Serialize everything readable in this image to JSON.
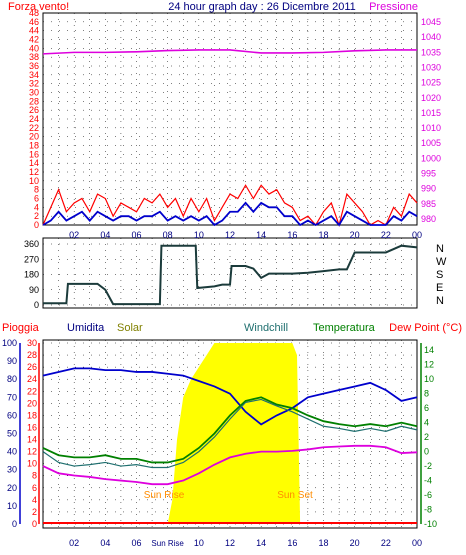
{
  "header": {
    "wind_label": "Forza vento!",
    "title": "24 hour graph day : 26 Dicembre 2011",
    "pressure_label": "Pressione"
  },
  "colors": {
    "red": "#ff0000",
    "blue": "#0000cc",
    "magenta": "#dd00dd",
    "navy": "#000080",
    "green": "#008000",
    "teal": "#1f6f6f",
    "dark": "#1b3b3b",
    "yellow": "#ffff00",
    "olive": "#808000",
    "orange": "#ff8c00"
  },
  "legend": {
    "rain": "Pioggia",
    "humidity": "Umidita",
    "solar": "Solar",
    "windchill": "Windchill",
    "temperature": "Temperatura",
    "dewpoint": "Dew Point (°C)"
  },
  "annotations": {
    "sunrise": "Sun Rise",
    "sunset": "Sun Set"
  },
  "compass": [
    "N",
    "W",
    "S",
    "E",
    "N"
  ],
  "chart_data": [
    {
      "type": "line",
      "panel": "wind-and-pressure",
      "x_ticks": [
        "02",
        "04",
        "06",
        "08",
        "10",
        "12",
        "14",
        "16",
        "18",
        "20",
        "22",
        "00"
      ],
      "y_left_ticks": [
        "0",
        "2",
        "4",
        "6",
        "8",
        "10",
        "12",
        "14",
        "16",
        "18",
        "20",
        "22",
        "24",
        "26",
        "28",
        "30",
        "32",
        "34",
        "36",
        "38",
        "40",
        "42",
        "44",
        "46",
        "48"
      ],
      "y_left_range": [
        0,
        48
      ],
      "y_right_ticks": [
        "980",
        "985",
        "990",
        "995",
        "1000",
        "1005",
        "1010",
        "1015",
        "1020",
        "1025",
        "1030",
        "1035",
        "1040",
        "1045"
      ],
      "y_right_range": [
        978,
        1048
      ],
      "series": [
        {
          "key": "gust",
          "x": [
            0.0,
            0.5,
            1.0,
            1.5,
            2.0,
            2.5,
            3.0,
            3.5,
            4.0,
            4.5,
            5.0,
            5.5,
            6.0,
            6.5,
            7.0,
            7.5,
            8.0,
            8.5,
            9.0,
            9.5,
            10.0,
            10.5,
            11.0,
            11.5,
            12.0,
            12.5,
            13.0,
            13.5,
            14.0,
            14.5,
            15.0,
            15.5,
            16.0,
            16.5,
            17.0,
            17.5,
            18.0,
            18.5,
            19.0,
            19.5,
            20.0,
            20.5,
            21.0,
            21.5,
            22.0,
            22.5,
            23.0,
            23.5,
            24.0
          ],
          "values": [
            0,
            4,
            8,
            3,
            5,
            6,
            3,
            7,
            6,
            2,
            5,
            4,
            3,
            6,
            5,
            7,
            4,
            6,
            2,
            6,
            3,
            6,
            1,
            4,
            7,
            6,
            9,
            6,
            9,
            7,
            8,
            5,
            4,
            1,
            2,
            0,
            3,
            5,
            0,
            7,
            5,
            3,
            0,
            1,
            0,
            4,
            2,
            7,
            5
          ]
        },
        {
          "key": "wind",
          "x": [
            0.0,
            0.5,
            1.0,
            1.5,
            2.0,
            2.5,
            3.0,
            3.5,
            4.0,
            4.5,
            5.0,
            5.5,
            6.0,
            6.5,
            7.0,
            7.5,
            8.0,
            8.5,
            9.0,
            9.5,
            10.0,
            10.5,
            11.0,
            11.5,
            12.0,
            12.5,
            13.0,
            13.5,
            14.0,
            14.5,
            15.0,
            15.5,
            16.0,
            16.5,
            17.0,
            17.5,
            18.0,
            18.5,
            19.0,
            19.5,
            20.0,
            20.5,
            21.0,
            21.5,
            22.0,
            22.5,
            23.0,
            23.5,
            24.0
          ],
          "values": [
            0,
            1,
            3,
            1,
            2,
            3,
            1,
            3,
            2,
            1,
            2,
            2,
            1,
            2,
            2,
            3,
            1,
            2,
            1,
            2,
            1,
            2,
            0,
            1,
            3,
            3,
            5,
            3,
            5,
            4,
            4,
            2,
            2,
            0,
            1,
            0,
            1,
            2,
            0,
            3,
            2,
            1,
            0,
            0,
            0,
            2,
            1,
            3,
            2
          ]
        },
        {
          "key": "pressure",
          "x": [
            0,
            2,
            4,
            6,
            8,
            10,
            12,
            14,
            16,
            18,
            20,
            22,
            24
          ],
          "values": [
            1034.5,
            1035.0,
            1035.0,
            1035.2,
            1035.6,
            1035.8,
            1035.8,
            1034.8,
            1034.8,
            1035.0,
            1035.5,
            1035.8,
            1035.8
          ]
        }
      ]
    },
    {
      "type": "line",
      "panel": "wind-direction",
      "y_ticks": [
        "360",
        "270",
        "180",
        "90",
        "0"
      ],
      "y_range": [
        0,
        360
      ],
      "series": [
        {
          "key": "direction",
          "x": [
            0,
            1.5,
            1.6,
            3.5,
            4.0,
            4.5,
            7.5,
            7.6,
            9.8,
            9.9,
            11.0,
            11.5,
            12.0,
            12.1,
            13.0,
            13.5,
            14.0,
            14.5,
            15.0,
            16.0,
            17.0,
            18.0,
            19.0,
            19.5,
            20.0,
            21.0,
            22.0,
            23.0,
            24.0
          ],
          "values": [
            10,
            10,
            125,
            125,
            90,
            5,
            5,
            350,
            350,
            100,
            110,
            120,
            120,
            230,
            230,
            215,
            160,
            185,
            185,
            185,
            190,
            200,
            210,
            210,
            310,
            310,
            310,
            350,
            340
          ]
        }
      ]
    },
    {
      "type": "line",
      "panel": "rain-humidity-solar-temperature",
      "x_ticks": [
        "02",
        "04",
        "06",
        "Sun Rise",
        "10",
        "12",
        "14",
        "16",
        "18",
        "20",
        "22",
        "00"
      ],
      "y_humidity_ticks": [
        "0",
        "10",
        "20",
        "30",
        "40",
        "50",
        "60",
        "70",
        "80",
        "90",
        "100"
      ],
      "y_rain_ticks": [
        "0",
        "2",
        "4",
        "6",
        "8",
        "10",
        "12",
        "14",
        "16",
        "18",
        "20",
        "22",
        "24",
        "26",
        "28",
        "30"
      ],
      "y_rain_range": [
        0,
        30
      ],
      "y_temp_ticks": [
        "-10",
        "-8",
        "-6",
        "-4",
        "-2",
        "0",
        "2",
        "4",
        "6",
        "8",
        "10",
        "12",
        "14"
      ],
      "y_temp_range": [
        -10,
        15
      ],
      "series": [
        {
          "key": "humidity",
          "x": [
            0,
            1,
            2,
            3,
            4,
            5,
            6,
            7,
            8,
            9,
            10,
            11,
            12,
            13,
            14,
            15,
            16,
            17,
            18,
            19,
            20,
            21,
            22,
            23,
            24
          ],
          "values": [
            82,
            84,
            86,
            86,
            85,
            85,
            84,
            84,
            83,
            82,
            79,
            76,
            72,
            62,
            55,
            60,
            64,
            70,
            72,
            74,
            76,
            78,
            74,
            68,
            70
          ]
        },
        {
          "key": "temperature",
          "x": [
            0,
            1,
            2,
            3,
            4,
            5,
            6,
            7,
            8,
            9,
            10,
            11,
            12,
            13,
            14,
            15,
            16,
            17,
            18,
            19,
            20,
            21,
            22,
            23,
            24
          ],
          "values": [
            0.5,
            -0.5,
            -0.8,
            -0.8,
            -0.5,
            -1.0,
            -1.0,
            -1.5,
            -1.5,
            -1.0,
            0.5,
            2.5,
            5.0,
            7.0,
            7.5,
            6.5,
            6.0,
            5.0,
            4.2,
            3.8,
            3.5,
            3.8,
            3.5,
            4.0,
            3.5
          ]
        },
        {
          "key": "windchill",
          "x": [
            0,
            1,
            2,
            3,
            4,
            5,
            6,
            7,
            8,
            9,
            10,
            11,
            12,
            13,
            14,
            15,
            16,
            17,
            18,
            19,
            20,
            21,
            22,
            23,
            24
          ],
          "values": [
            0.0,
            -1.5,
            -2.0,
            -1.8,
            -1.5,
            -2.0,
            -1.8,
            -2.2,
            -2.2,
            -1.5,
            0.0,
            2.0,
            4.5,
            6.8,
            7.2,
            6.3,
            5.5,
            4.5,
            3.5,
            3.2,
            2.8,
            3.2,
            2.8,
            3.5,
            3.0
          ]
        },
        {
          "key": "dewpoint",
          "x": [
            0,
            1,
            2,
            3,
            4,
            5,
            6,
            7,
            8,
            9,
            10,
            11,
            12,
            13,
            14,
            15,
            16,
            17,
            18,
            19,
            20,
            21,
            22,
            23,
            24
          ],
          "values": [
            -2.0,
            -3.0,
            -3.3,
            -3.5,
            -3.8,
            -4.0,
            -4.2,
            -4.5,
            -4.5,
            -4.0,
            -3.0,
            -1.8,
            -0.8,
            -0.3,
            0.0,
            0.0,
            0.1,
            0.3,
            0.6,
            0.7,
            0.8,
            0.8,
            0.6,
            -0.2,
            -0.1
          ]
        },
        {
          "key": "solar",
          "x": [
            8.0,
            8.3,
            8.6,
            9.0,
            9.5,
            10.0,
            10.5,
            11.0,
            11.5,
            12.0,
            12.5,
            13.0,
            13.5,
            14.0,
            14.5,
            15.0,
            15.5,
            16.0,
            16.3,
            16.5
          ],
          "values": [
            0,
            4,
            14,
            21,
            24,
            26,
            28,
            30,
            30,
            30,
            30,
            30,
            30,
            30,
            30,
            30,
            30,
            30,
            28,
            0
          ]
        },
        {
          "key": "rain",
          "x": [
            0,
            24
          ],
          "values": [
            0,
            0
          ]
        }
      ]
    }
  ]
}
